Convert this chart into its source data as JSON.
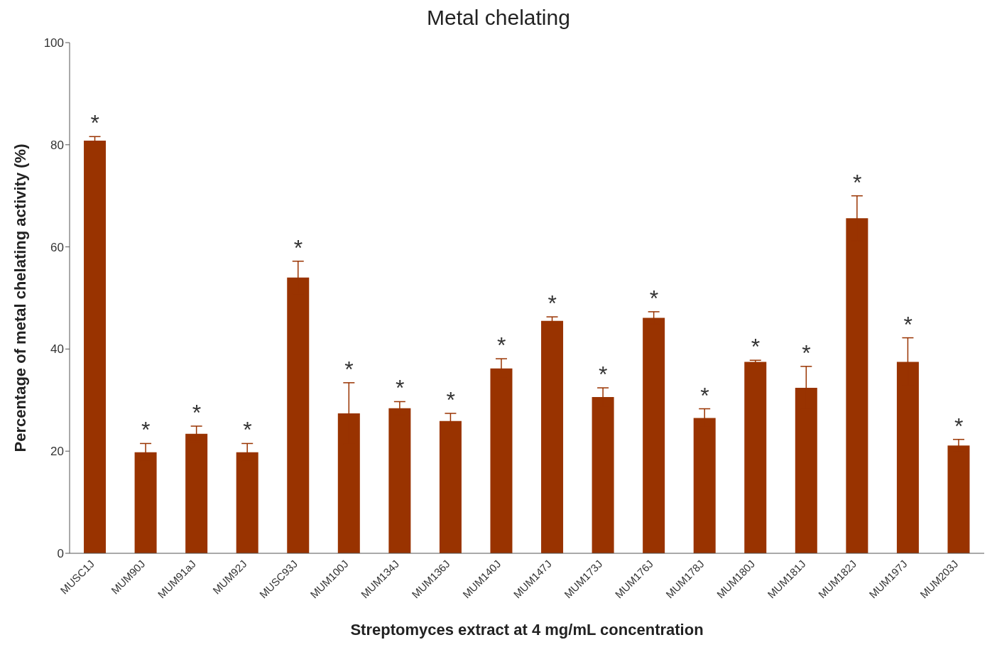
{
  "chart_data": {
    "type": "bar",
    "title": "Metal chelating",
    "xlabel": "Streptomyces extract at 4 mg/mL concentration",
    "ylabel": "Percentage of metal chelating activity (%)",
    "categories": [
      "MUSC1J",
      "MUM90J",
      "MUM91aJ",
      "MUM92J",
      "MUSC93J",
      "MUM100J",
      "MUM134J",
      "MUM136J",
      "MUM140J",
      "MUM147J",
      "MUM173J",
      "MUM176J",
      "MUM178J",
      "MUM180J",
      "MUM181J",
      "MUM182J",
      "MUM197J",
      "MUM203J"
    ],
    "values": [
      80.8,
      19.8,
      23.4,
      19.8,
      54.0,
      27.4,
      28.4,
      25.9,
      36.2,
      45.5,
      30.6,
      46.1,
      26.5,
      37.5,
      32.4,
      65.6,
      37.5,
      21.1
    ],
    "errors": [
      0.8,
      1.7,
      1.5,
      1.7,
      3.2,
      6.0,
      1.3,
      1.5,
      1.9,
      0.8,
      1.8,
      1.2,
      1.8,
      0.3,
      4.2,
      4.4,
      4.7,
      1.2
    ],
    "color": "#993300",
    "ylim": [
      0,
      100
    ],
    "yticks": [
      0,
      20,
      40,
      60,
      80,
      100
    ],
    "grid": false,
    "legend": false,
    "annotations": [
      {
        "text": "*",
        "x": "MUSC1J",
        "y": 80.8
      },
      {
        "text": "*",
        "x": "MUM90J",
        "y": 19.8
      },
      {
        "text": "*",
        "x": "MUM91aJ",
        "y": 23.4
      },
      {
        "text": "*",
        "x": "MUM92J",
        "y": 19.8
      },
      {
        "text": "*",
        "x": "MUSC93J",
        "y": 54.0
      },
      {
        "text": "*",
        "x": "MUM100J",
        "y": 27.4
      },
      {
        "text": "*",
        "x": "MUM134J",
        "y": 28.4
      },
      {
        "text": "*",
        "x": "MUM136J",
        "y": 25.9
      },
      {
        "text": "*",
        "x": "MUM140J",
        "y": 36.2
      },
      {
        "text": "*",
        "x": "MUM147J",
        "y": 45.5
      },
      {
        "text": "*",
        "x": "MUM173J",
        "y": 30.6
      },
      {
        "text": "*",
        "x": "MUM176J",
        "y": 46.1
      },
      {
        "text": "*",
        "x": "MUM178J",
        "y": 26.5
      },
      {
        "text": "*",
        "x": "MUM180J",
        "y": 37.5
      },
      {
        "text": "*",
        "x": "MUM181J",
        "y": 32.4
      },
      {
        "text": "*",
        "x": "MUM182J",
        "y": 65.6
      },
      {
        "text": "*",
        "x": "MUM197J",
        "y": 37.5
      },
      {
        "text": "*",
        "x": "MUM203J",
        "y": 21.1
      }
    ]
  }
}
